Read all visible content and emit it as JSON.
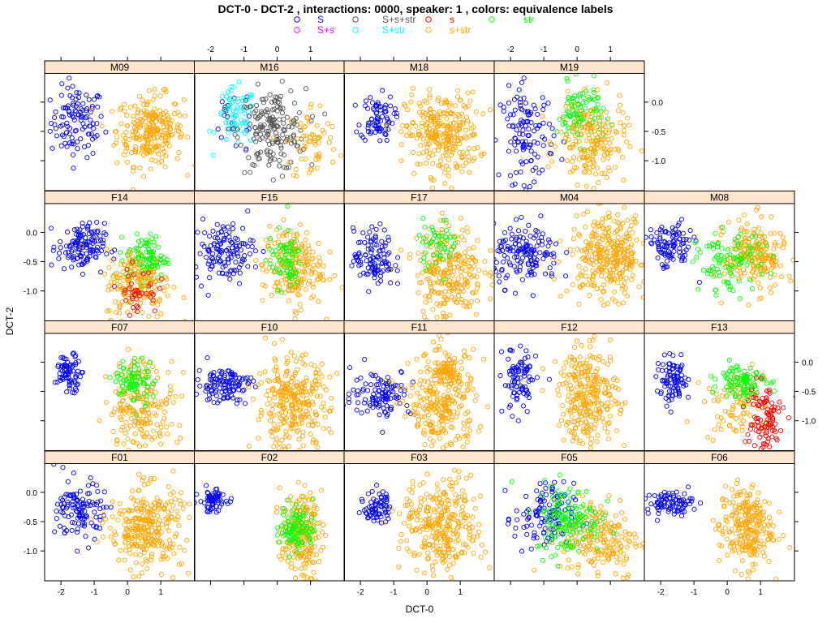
{
  "chart_data": {
    "type": "scatter",
    "title": "DCT-0 - DCT-2 ,  interactions: 0000, speaker:  1 , colors:  equivalence  labels",
    "xlabel": "DCT-0",
    "ylabel": "DCT-2",
    "xlim": [
      -2.49,
      2.02
    ],
    "ylim": [
      -1.51,
      0.49
    ],
    "xticks": [
      -2,
      -1,
      0,
      1
    ],
    "xtick_labels": [
      "-2",
      "-1",
      "0",
      "1"
    ],
    "yticks": [
      0,
      -0.5,
      -1
    ],
    "ytick_labels": [
      "0.0",
      "-0.5",
      "-1.0"
    ],
    "legend": [
      {
        "label": "S",
        "color": "#0000ff"
      },
      {
        "label": "S+s+str",
        "color": "#555555"
      },
      {
        "label": "s",
        "color": "#ff0000"
      },
      {
        "label": "str",
        "color": "#00ff00"
      },
      {
        "label": "S+s",
        "color": "#ff00ff"
      },
      {
        "label": "S+str",
        "color": "#00ffff"
      },
      {
        "label": "s+str",
        "color": "#ffa500"
      }
    ],
    "legend_placement": "top-center",
    "note": "Point clouds are described per panel as clusters (label, count, mean x/y, sd x/y) in data units.",
    "panels": [
      {
        "name": "M09",
        "row": 0,
        "col": 0,
        "clusters": [
          [
            "S",
            110,
            -1.5,
            -0.34,
            0.4,
            0.3
          ],
          [
            "s+str",
            250,
            0.68,
            -0.48,
            0.5,
            0.3
          ]
        ]
      },
      {
        "name": "M16",
        "row": 0,
        "col": 1,
        "clusters": [
          [
            "S",
            20,
            -1.3,
            -0.3,
            0.4,
            0.3
          ],
          [
            "S+str",
            70,
            -1.24,
            -0.27,
            0.3,
            0.25
          ],
          [
            "S+s+str",
            180,
            -0.15,
            -0.48,
            0.5,
            0.35
          ],
          [
            "s+str",
            60,
            1.06,
            -0.69,
            0.4,
            0.35
          ]
        ]
      },
      {
        "name": "M18",
        "row": 0,
        "col": 2,
        "clusters": [
          [
            "S",
            80,
            -1.5,
            -0.27,
            0.25,
            0.2
          ],
          [
            "s+str",
            280,
            0.46,
            -0.55,
            0.55,
            0.35
          ]
        ]
      },
      {
        "name": "M19",
        "row": 0,
        "col": 3,
        "clusters": [
          [
            "S",
            120,
            -1.5,
            -0.55,
            0.4,
            0.4
          ],
          [
            "str",
            100,
            0.1,
            -0.2,
            0.35,
            0.25
          ],
          [
            "s+str",
            180,
            0.46,
            -0.69,
            0.5,
            0.35
          ]
        ]
      },
      {
        "name": "F14",
        "row": 1,
        "col": 0,
        "clusters": [
          [
            "S",
            130,
            -1.39,
            -0.25,
            0.35,
            0.2
          ],
          [
            "str",
            110,
            0.56,
            -0.45,
            0.3,
            0.2
          ],
          [
            "s+str",
            170,
            0.32,
            -0.87,
            0.5,
            0.3
          ],
          [
            "s",
            40,
            0.3,
            -1.0,
            0.3,
            0.2
          ]
        ]
      },
      {
        "name": "F15",
        "row": 1,
        "col": 1,
        "clusters": [
          [
            "S",
            130,
            -1.6,
            -0.32,
            0.45,
            0.25
          ],
          [
            "s+str",
            200,
            0.46,
            -0.59,
            0.45,
            0.35
          ],
          [
            "str",
            70,
            0.22,
            -0.45,
            0.25,
            0.25
          ]
        ]
      },
      {
        "name": "F17",
        "row": 1,
        "col": 2,
        "clusters": [
          [
            "S",
            110,
            -1.6,
            -0.45,
            0.3,
            0.25
          ],
          [
            "s+str",
            250,
            0.68,
            -0.66,
            0.5,
            0.4
          ],
          [
            "str",
            50,
            0.32,
            -0.18,
            0.3,
            0.2
          ]
        ]
      },
      {
        "name": "M04",
        "row": 1,
        "col": 3,
        "clusters": [
          [
            "S",
            150,
            -1.5,
            -0.4,
            0.5,
            0.25
          ],
          [
            "s+str",
            320,
            0.95,
            -0.4,
            0.6,
            0.35
          ]
        ]
      },
      {
        "name": "M08",
        "row": 1,
        "col": 4,
        "clusters": [
          [
            "S",
            100,
            -1.73,
            -0.25,
            0.35,
            0.2
          ],
          [
            "s+str",
            200,
            0.83,
            -0.4,
            0.45,
            0.3
          ],
          [
            "str",
            100,
            0.1,
            -0.53,
            0.5,
            0.25
          ]
        ]
      },
      {
        "name": "F07",
        "row": 2,
        "col": 0,
        "clusters": [
          [
            "S",
            80,
            -1.76,
            -0.18,
            0.2,
            0.15
          ],
          [
            "s+str",
            200,
            0.44,
            -0.73,
            0.5,
            0.4
          ],
          [
            "str",
            80,
            0.2,
            -0.32,
            0.3,
            0.2
          ]
        ]
      },
      {
        "name": "F10",
        "row": 2,
        "col": 1,
        "clusters": [
          [
            "S",
            120,
            -1.6,
            -0.38,
            0.4,
            0.15
          ],
          [
            "s+str",
            300,
            0.46,
            -0.73,
            0.55,
            0.4
          ]
        ]
      },
      {
        "name": "F11",
        "row": 2,
        "col": 2,
        "clusters": [
          [
            "S",
            110,
            -1.37,
            -0.52,
            0.45,
            0.2
          ],
          [
            "s+str",
            280,
            0.46,
            -0.73,
            0.5,
            0.45
          ],
          [
            "s+str",
            60,
            0.6,
            -0.18,
            0.2,
            0.12
          ]
        ]
      },
      {
        "name": "F12",
        "row": 2,
        "col": 3,
        "clusters": [
          [
            "S",
            90,
            -1.73,
            -0.32,
            0.25,
            0.3
          ],
          [
            "s+str",
            280,
            0.34,
            -0.59,
            0.45,
            0.4
          ]
        ]
      },
      {
        "name": "F13",
        "row": 2,
        "col": 4,
        "clusters": [
          [
            "S",
            90,
            -1.61,
            -0.32,
            0.25,
            0.18
          ],
          [
            "s+str",
            80,
            0.2,
            -0.73,
            0.45,
            0.3
          ],
          [
            "str",
            100,
            0.46,
            -0.32,
            0.35,
            0.15
          ],
          [
            "s",
            100,
            1.07,
            -0.95,
            0.3,
            0.3
          ]
        ]
      },
      {
        "name": "F01",
        "row": 3,
        "col": 0,
        "clusters": [
          [
            "S",
            120,
            -1.39,
            -0.32,
            0.35,
            0.25
          ],
          [
            "s+str",
            300,
            0.56,
            -0.59,
            0.55,
            0.35
          ]
        ]
      },
      {
        "name": "F02",
        "row": 3,
        "col": 1,
        "clusters": [
          [
            "S",
            70,
            -1.93,
            -0.14,
            0.2,
            0.1
          ],
          [
            "s+str",
            200,
            0.71,
            -0.73,
            0.3,
            0.35
          ],
          [
            "str",
            100,
            0.59,
            -0.59,
            0.25,
            0.2
          ]
        ]
      },
      {
        "name": "F03",
        "row": 3,
        "col": 2,
        "clusters": [
          [
            "S",
            70,
            -1.49,
            -0.25,
            0.2,
            0.15
          ],
          [
            "s+str",
            300,
            0.46,
            -0.59,
            0.6,
            0.4
          ]
        ]
      },
      {
        "name": "F05",
        "row": 3,
        "col": 3,
        "clusters": [
          [
            "S",
            120,
            -1.0,
            -0.45,
            0.45,
            0.3
          ],
          [
            "s+str",
            200,
            0.7,
            -0.8,
            0.6,
            0.35
          ],
          [
            "str",
            150,
            -0.27,
            -0.45,
            0.5,
            0.3
          ]
        ]
      },
      {
        "name": "F06",
        "row": 3,
        "col": 4,
        "clusters": [
          [
            "S",
            90,
            -1.73,
            -0.18,
            0.35,
            0.1
          ],
          [
            "s+str",
            250,
            0.56,
            -0.59,
            0.4,
            0.35
          ]
        ]
      }
    ]
  }
}
